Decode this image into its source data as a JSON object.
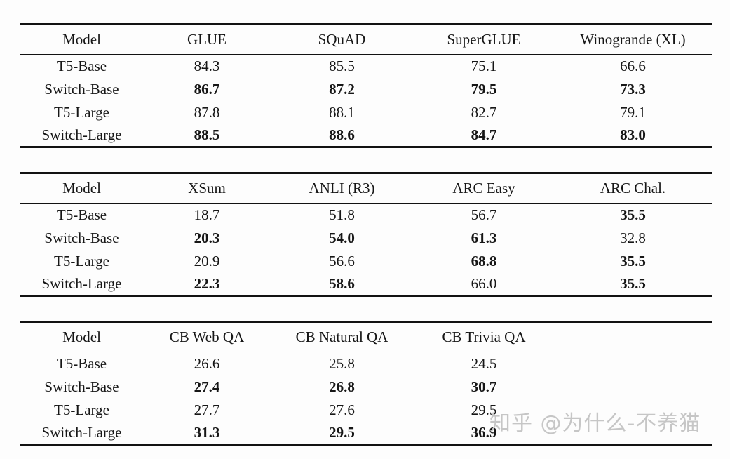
{
  "page": {
    "background": "#fdfdfd",
    "text_color": "#161616",
    "rule_color": "#121212"
  },
  "watermark": {
    "text": "知乎 @为什么-不养猫",
    "color": "#c6c6c6"
  },
  "tables": [
    {
      "headers": [
        "Model",
        "GLUE",
        "SQuAD",
        "SuperGLUE",
        "Winogrande (XL)"
      ],
      "rows": [
        {
          "cells": [
            {
              "t": "T5-Base",
              "b": false
            },
            {
              "t": "84.3",
              "b": false
            },
            {
              "t": "85.5",
              "b": false
            },
            {
              "t": "75.1",
              "b": false
            },
            {
              "t": "66.6",
              "b": false
            }
          ]
        },
        {
          "cells": [
            {
              "t": "Switch-Base",
              "b": false
            },
            {
              "t": "86.7",
              "b": true
            },
            {
              "t": "87.2",
              "b": true
            },
            {
              "t": "79.5",
              "b": true
            },
            {
              "t": "73.3",
              "b": true
            }
          ]
        },
        {
          "cells": [
            {
              "t": "T5-Large",
              "b": false
            },
            {
              "t": "87.8",
              "b": false
            },
            {
              "t": "88.1",
              "b": false
            },
            {
              "t": "82.7",
              "b": false
            },
            {
              "t": "79.1",
              "b": false
            }
          ]
        },
        {
          "cells": [
            {
              "t": "Switch-Large",
              "b": false
            },
            {
              "t": "88.5",
              "b": true
            },
            {
              "t": "88.6",
              "b": true
            },
            {
              "t": "84.7",
              "b": true
            },
            {
              "t": "83.0",
              "b": true
            }
          ]
        }
      ]
    },
    {
      "headers": [
        "Model",
        "XSum",
        "ANLI (R3)",
        "ARC Easy",
        "ARC Chal."
      ],
      "rows": [
        {
          "cells": [
            {
              "t": "T5-Base",
              "b": false
            },
            {
              "t": "18.7",
              "b": false
            },
            {
              "t": "51.8",
              "b": false
            },
            {
              "t": "56.7",
              "b": false
            },
            {
              "t": "35.5",
              "b": true
            }
          ]
        },
        {
          "cells": [
            {
              "t": "Switch-Base",
              "b": false
            },
            {
              "t": "20.3",
              "b": true
            },
            {
              "t": "54.0",
              "b": true
            },
            {
              "t": "61.3",
              "b": true
            },
            {
              "t": "32.8",
              "b": false
            }
          ]
        },
        {
          "cells": [
            {
              "t": "T5-Large",
              "b": false
            },
            {
              "t": "20.9",
              "b": false
            },
            {
              "t": "56.6",
              "b": false
            },
            {
              "t": "68.8",
              "b": true
            },
            {
              "t": "35.5",
              "b": true
            }
          ]
        },
        {
          "cells": [
            {
              "t": "Switch-Large",
              "b": false
            },
            {
              "t": "22.3",
              "b": true
            },
            {
              "t": "58.6",
              "b": true
            },
            {
              "t": "66.0",
              "b": false
            },
            {
              "t": "35.5",
              "b": true
            }
          ]
        }
      ]
    },
    {
      "headers": [
        "Model",
        "CB Web QA",
        "CB Natural QA",
        "CB Trivia QA",
        ""
      ],
      "rows": [
        {
          "cells": [
            {
              "t": "T5-Base",
              "b": false
            },
            {
              "t": "26.6",
              "b": false
            },
            {
              "t": "25.8",
              "b": false
            },
            {
              "t": "24.5",
              "b": false
            },
            {
              "t": "",
              "b": false
            }
          ]
        },
        {
          "cells": [
            {
              "t": "Switch-Base",
              "b": false
            },
            {
              "t": "27.4",
              "b": true
            },
            {
              "t": "26.8",
              "b": true
            },
            {
              "t": "30.7",
              "b": true
            },
            {
              "t": "",
              "b": false
            }
          ]
        },
        {
          "cells": [
            {
              "t": "T5-Large",
              "b": false
            },
            {
              "t": "27.7",
              "b": false
            },
            {
              "t": "27.6",
              "b": false
            },
            {
              "t": "29.5",
              "b": false
            },
            {
              "t": "",
              "b": false
            }
          ]
        },
        {
          "cells": [
            {
              "t": "Switch-Large",
              "b": false
            },
            {
              "t": "31.3",
              "b": true
            },
            {
              "t": "29.5",
              "b": true
            },
            {
              "t": "36.9",
              "b": true
            },
            {
              "t": "",
              "b": false
            }
          ]
        }
      ]
    }
  ]
}
